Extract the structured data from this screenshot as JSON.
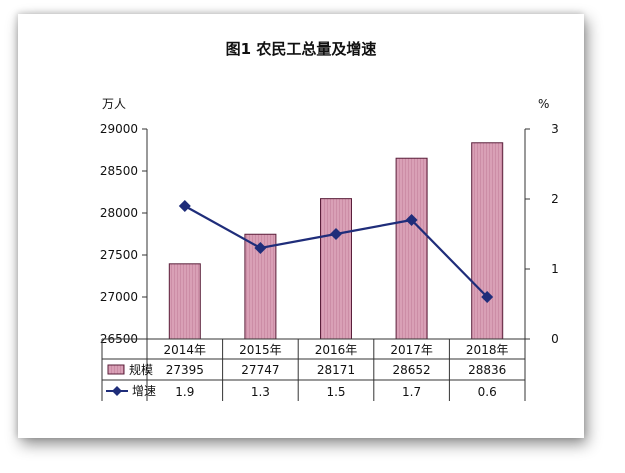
{
  "chart_data": {
    "type": "bar",
    "title": "图1  农民工总量及增速",
    "left_unit": "万人",
    "right_unit": "%",
    "categories": [
      "2014年",
      "2015年",
      "2016年",
      "2017年",
      "2018年"
    ],
    "y_left": {
      "min": 26500,
      "max": 29000,
      "ticks": [
        "26500",
        "27000",
        "27500",
        "28000",
        "28500",
        "29000"
      ]
    },
    "y_right": {
      "min": 0,
      "max": 3,
      "ticks": [
        "0",
        "1",
        "2",
        "3"
      ]
    },
    "series": [
      {
        "name": "规模",
        "type": "bar",
        "axis": "left",
        "values": [
          27395,
          27747,
          28171,
          28652,
          28836
        ],
        "labels": [
          "27395",
          "27747",
          "28171",
          "28652",
          "28836"
        ]
      },
      {
        "name": "增速",
        "type": "line",
        "axis": "right",
        "values": [
          1.9,
          1.3,
          1.5,
          1.7,
          0.6
        ],
        "labels": [
          "1.9",
          "1.3",
          "1.5",
          "1.7",
          "0.6"
        ]
      }
    ],
    "colors": {
      "bar_fill": "#d9a0b6",
      "bar_stroke": "#5a1f3a",
      "line": "#1f2d7a"
    },
    "data_table": true,
    "grid": false
  }
}
